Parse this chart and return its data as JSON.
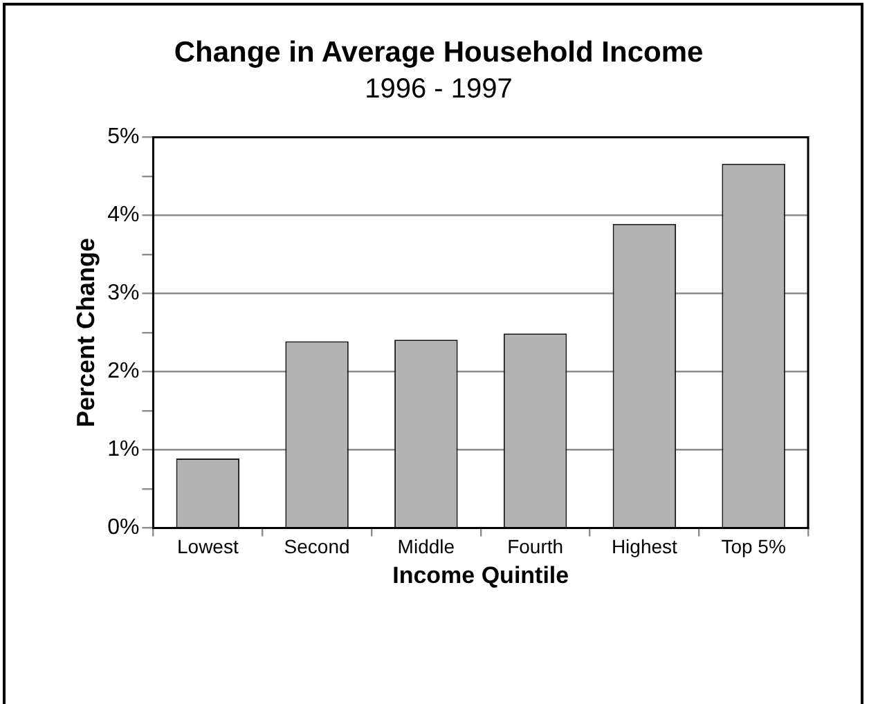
{
  "chart_data": {
    "type": "bar",
    "title": "Change in Average Household Income",
    "subtitle": "1996 - 1997",
    "xlabel": "Income Quintile",
    "ylabel": "Percent Change",
    "categories": [
      "Lowest",
      "Second",
      "Middle",
      "Fourth",
      "Highest",
      "Top 5%"
    ],
    "values": [
      0.89,
      2.39,
      2.41,
      2.49,
      3.89,
      4.66
    ],
    "color": "#b3b3b3",
    "ylim": [
      0,
      5
    ],
    "yticks": [
      {
        "value": 0,
        "label": "0%"
      },
      {
        "value": 0.5,
        "label": null
      },
      {
        "value": 1,
        "label": "1%"
      },
      {
        "value": 1.5,
        "label": null
      },
      {
        "value": 2,
        "label": "2%"
      },
      {
        "value": 2.5,
        "label": null
      },
      {
        "value": 3,
        "label": "3%"
      },
      {
        "value": 3.5,
        "label": null
      },
      {
        "value": 4,
        "label": "4%"
      },
      {
        "value": 4.5,
        "label": null
      },
      {
        "value": 5,
        "label": "5%"
      }
    ],
    "grid": "y",
    "legend": false
  }
}
